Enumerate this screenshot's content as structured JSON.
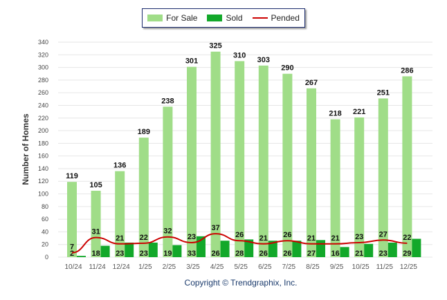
{
  "legend": {
    "for_sale": "For Sale",
    "sold": "Sold",
    "pended": "Pended"
  },
  "copyright": "Copyright © Trendgraphix, Inc.",
  "colors": {
    "for_sale": "#a0dd88",
    "sold": "#12a82a",
    "pended": "#cc0000"
  },
  "chart_data": {
    "type": "bar",
    "title": "",
    "xlabel": "",
    "ylabel": "Number of Homes",
    "ylim": [
      0,
      340
    ],
    "yticks": [
      0,
      20,
      40,
      60,
      80,
      100,
      120,
      140,
      160,
      180,
      200,
      220,
      240,
      260,
      280,
      300,
      320,
      340
    ],
    "grid": true,
    "legend_position": "top-center",
    "categories": [
      "10/24",
      "11/24",
      "12/24",
      "1/25",
      "2/25",
      "3/25",
      "4/25",
      "5/25",
      "6/25",
      "7/25",
      "8/25",
      "9/25",
      "10/25",
      "11/25",
      "12/25"
    ],
    "series": [
      {
        "name": "For Sale",
        "type": "bar",
        "values": [
          119,
          105,
          136,
          189,
          238,
          301,
          325,
          310,
          303,
          290,
          267,
          218,
          221,
          251,
          286
        ]
      },
      {
        "name": "Sold",
        "type": "bar",
        "values": [
          2,
          18,
          23,
          23,
          19,
          33,
          26,
          28,
          26,
          26,
          27,
          16,
          21,
          23,
          29
        ]
      },
      {
        "name": "Pended",
        "type": "line",
        "values": [
          7,
          31,
          21,
          22,
          32,
          23,
          37,
          26,
          21,
          26,
          21,
          21,
          23,
          27,
          22
        ]
      }
    ]
  }
}
